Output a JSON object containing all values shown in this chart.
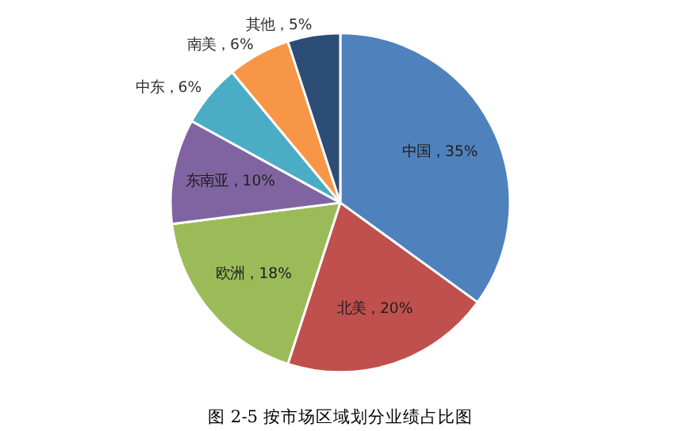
{
  "chart_data": {
    "type": "pie",
    "categories": [
      "中国",
      "北美",
      "欧洲",
      "东南亚",
      "中东",
      "南美",
      "其他"
    ],
    "values": [
      35,
      20,
      18,
      10,
      6,
      6,
      5
    ],
    "colors": [
      "#4f81bd",
      "#c0504d",
      "#9bbb59",
      "#8064a2",
      "#4bacc6",
      "#f79646",
      "#2c4d75"
    ],
    "value_labels": [
      "，35%",
      "，20%",
      "，18%",
      "，10%",
      "，6%",
      "，6%",
      "，5%"
    ],
    "annotations": [
      "图 2-5 按市场区域划分业绩占比图"
    ]
  }
}
